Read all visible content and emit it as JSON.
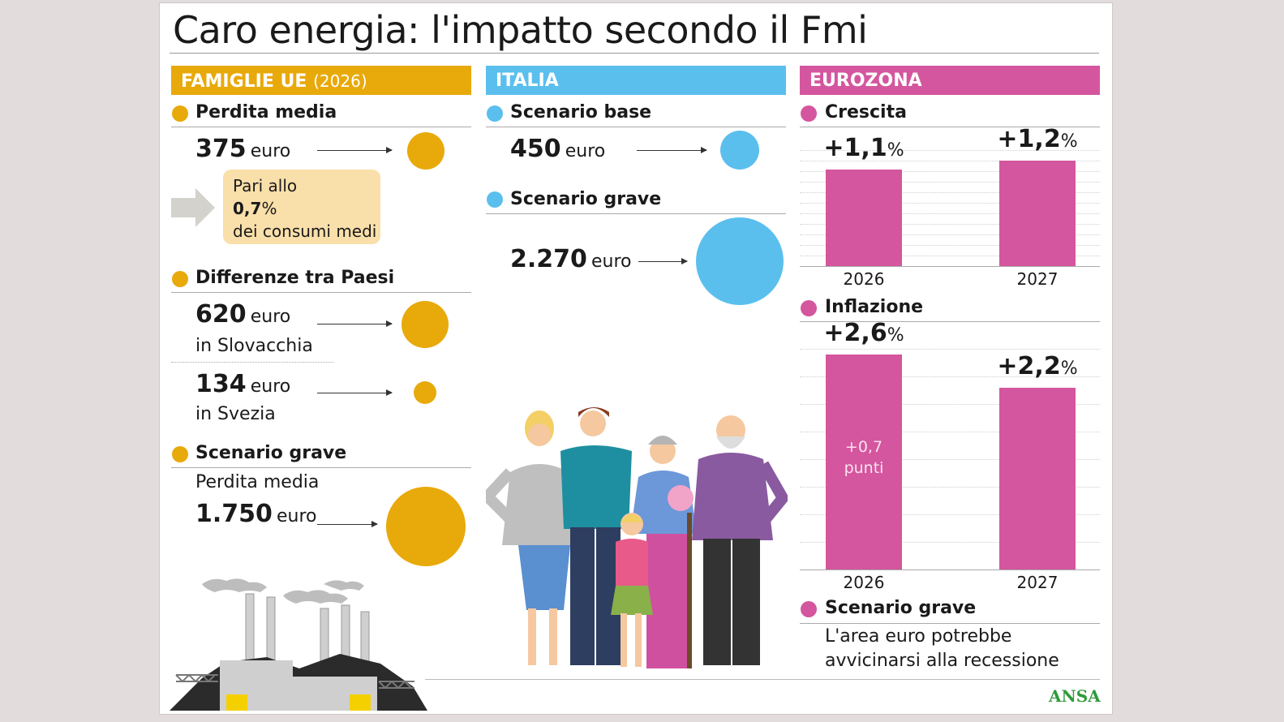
{
  "title": "Caro energia: l'impatto secondo il Fmi",
  "colors": {
    "famiglie": "#e8a90a",
    "italia": "#5bbfee",
    "eurozona": "#d4569e",
    "card_bg": "#ffffff",
    "page_bg": "#e2dcdc"
  },
  "famiglie": {
    "header": "FAMIGLIE UE",
    "header_sub": "(2026)",
    "perdita_media": {
      "label": "Perdita media",
      "value": "375",
      "unit": "euro",
      "note_line1": "Pari allo",
      "note_value": "0,7",
      "note_pct": "%",
      "note_line3": "dei consumi medi"
    },
    "differenze": {
      "label": "Differenze tra Paesi",
      "item1_value": "620",
      "item1_unit": "euro",
      "item1_place": "in Slovacchia",
      "item2_value": "134",
      "item2_unit": "euro",
      "item2_place": "in Svezia"
    },
    "scenario_grave": {
      "label": "Scenario grave",
      "sub": "Perdita media",
      "value": "1.750",
      "unit": "euro"
    }
  },
  "italia": {
    "header": "ITALIA",
    "base_label": "Scenario base",
    "base_value": "450",
    "base_unit": "euro",
    "grave_label": "Scenario grave",
    "grave_value": "2.270",
    "grave_unit": "euro"
  },
  "eurozona": {
    "header": "EUROZONA",
    "crescita_label": "Crescita",
    "inflazione_label": "Inflazione",
    "inflazione_note_line1": "+0,7",
    "inflazione_note_line2": "punti",
    "scenario_label": "Scenario grave",
    "scenario_line1": "L'area euro potrebbe",
    "scenario_line2": "avvicinarsi alla recessione"
  },
  "source": "ANSA",
  "chart_data": [
    {
      "type": "bar",
      "categories": [
        "2026",
        "2027"
      ],
      "values": [
        1.1,
        1.2
      ],
      "labels": [
        "+1,1",
        "+1,2"
      ],
      "unit": "%",
      "ylim": [
        0,
        1.35
      ]
    },
    {
      "type": "bar",
      "categories": [
        "2026",
        "2027"
      ],
      "values": [
        2.6,
        2.2
      ],
      "labels": [
        "+2,6",
        "+2,2"
      ],
      "unit": "%",
      "ylim": [
        0,
        2.75
      ]
    }
  ]
}
